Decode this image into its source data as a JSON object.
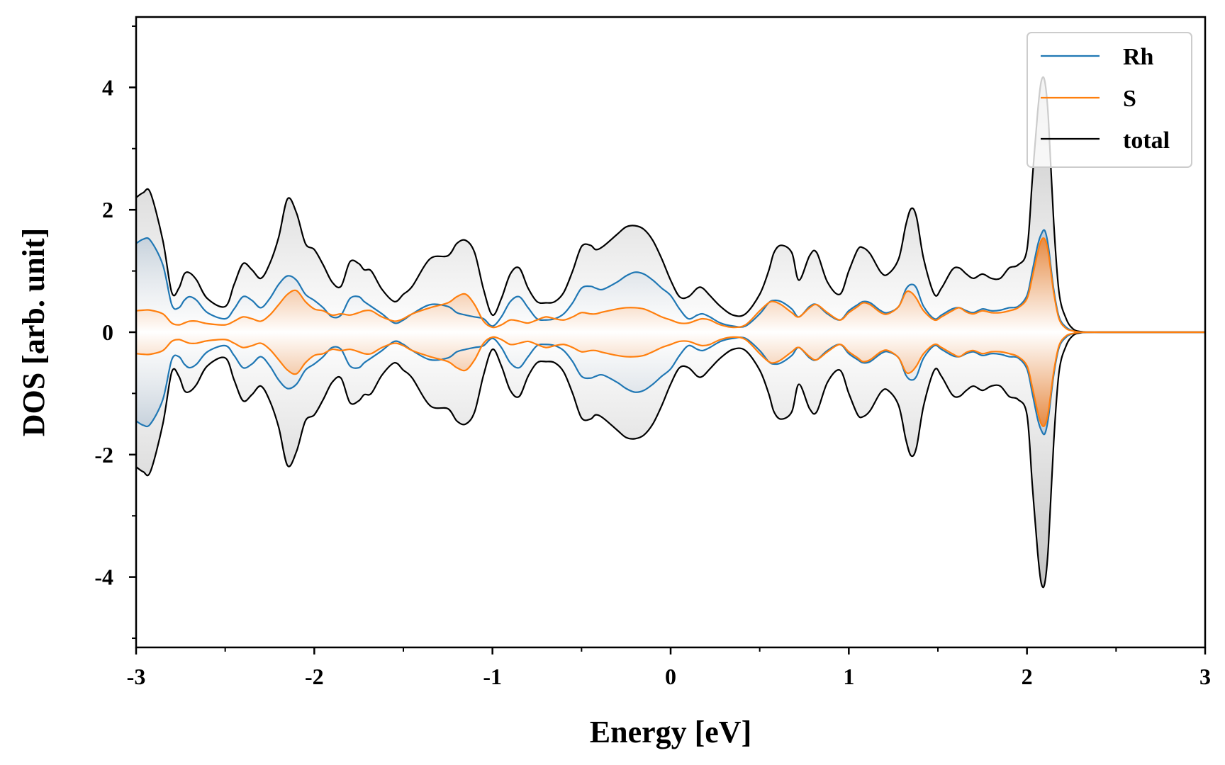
{
  "chart_data": {
    "type": "line",
    "title": "",
    "xlabel": "Energy [eV]",
    "ylabel": "DOS [arb. unit]",
    "xlim": [
      -3,
      3
    ],
    "ylim": [
      -5.15,
      5.15
    ],
    "xticks": [
      -3,
      -2,
      -1,
      0,
      1,
      2,
      3
    ],
    "xtick_labels": [
      "-3",
      "-2",
      "-1",
      "0",
      "1",
      "2",
      "3"
    ],
    "yticks": [
      -4,
      -2,
      0,
      2,
      4
    ],
    "ytick_labels": [
      "-4",
      "-2",
      "0",
      "2",
      "4"
    ],
    "mirrored_about_zero": true,
    "legend": {
      "position": "top-right",
      "entries": [
        "Rh",
        "S",
        "total"
      ]
    },
    "colors": {
      "Rh": "#1f77b4",
      "S": "#ff7f0e",
      "total": "#000000",
      "total_fill": "#bdbdbd",
      "s_fill": "#e8863a"
    },
    "x": [
      -3.0,
      -2.96,
      -2.92,
      -2.85,
      -2.8,
      -2.76,
      -2.73,
      -2.7,
      -2.66,
      -2.6,
      -2.5,
      -2.45,
      -2.4,
      -2.35,
      -2.3,
      -2.25,
      -2.2,
      -2.15,
      -2.1,
      -2.05,
      -2.0,
      -1.95,
      -1.9,
      -1.85,
      -1.8,
      -1.75,
      -1.72,
      -1.68,
      -1.62,
      -1.55,
      -1.5,
      -1.45,
      -1.35,
      -1.25,
      -1.2,
      -1.15,
      -1.1,
      -1.05,
      -1.0,
      -0.95,
      -0.9,
      -0.85,
      -0.8,
      -0.75,
      -0.7,
      -0.65,
      -0.6,
      -0.55,
      -0.5,
      -0.45,
      -0.42,
      -0.38,
      -0.3,
      -0.25,
      -0.2,
      -0.15,
      -0.1,
      -0.05,
      0.0,
      0.05,
      0.1,
      0.15,
      0.18,
      0.22,
      0.28,
      0.35,
      0.42,
      0.5,
      0.55,
      0.58,
      0.62,
      0.68,
      0.72,
      0.78,
      0.82,
      0.88,
      0.95,
      1.0,
      1.05,
      1.08,
      1.12,
      1.18,
      1.22,
      1.28,
      1.32,
      1.35,
      1.38,
      1.42,
      1.48,
      1.52,
      1.58,
      1.62,
      1.66,
      1.7,
      1.75,
      1.8,
      1.85,
      1.9,
      1.95,
      2.0,
      2.03,
      2.06,
      2.08,
      2.1,
      2.12,
      2.15,
      2.18,
      2.22,
      2.26,
      2.3,
      2.35,
      2.45,
      2.6,
      2.8,
      3.0
    ],
    "series": [
      {
        "name": "total",
        "values": [
          2.2,
          2.28,
          2.28,
          1.5,
          0.65,
          0.72,
          0.95,
          0.97,
          0.85,
          0.55,
          0.42,
          0.78,
          1.12,
          1.02,
          0.88,
          1.12,
          1.55,
          2.18,
          1.95,
          1.45,
          1.35,
          1.1,
          0.82,
          0.75,
          1.15,
          1.12,
          1.02,
          1.0,
          0.7,
          0.5,
          0.62,
          0.75,
          1.2,
          1.25,
          1.45,
          1.5,
          1.3,
          0.7,
          0.28,
          0.55,
          0.95,
          1.05,
          0.72,
          0.5,
          0.48,
          0.5,
          0.65,
          1.0,
          1.4,
          1.42,
          1.35,
          1.4,
          1.6,
          1.72,
          1.74,
          1.68,
          1.5,
          1.2,
          0.85,
          0.58,
          0.58,
          0.72,
          0.72,
          0.6,
          0.42,
          0.28,
          0.3,
          0.62,
          1.0,
          1.3,
          1.42,
          1.3,
          0.85,
          1.25,
          1.3,
          0.82,
          0.62,
          1.0,
          1.35,
          1.38,
          1.28,
          0.98,
          0.95,
          1.2,
          1.75,
          2.02,
          1.88,
          1.2,
          0.62,
          0.72,
          1.02,
          1.05,
          0.95,
          0.88,
          0.95,
          0.88,
          0.88,
          1.05,
          1.1,
          1.35,
          2.5,
          3.6,
          4.1,
          4.1,
          3.5,
          1.8,
          0.65,
          0.22,
          0.05,
          0.01,
          0.0,
          0.0,
          0.0,
          0.0,
          0.0
        ]
      },
      {
        "name": "Rh",
        "values": [
          1.45,
          1.52,
          1.5,
          1.1,
          0.45,
          0.4,
          0.52,
          0.58,
          0.52,
          0.32,
          0.22,
          0.38,
          0.58,
          0.52,
          0.4,
          0.55,
          0.78,
          0.92,
          0.85,
          0.62,
          0.52,
          0.4,
          0.25,
          0.28,
          0.55,
          0.58,
          0.5,
          0.42,
          0.3,
          0.15,
          0.2,
          0.3,
          0.45,
          0.42,
          0.32,
          0.28,
          0.25,
          0.22,
          0.1,
          0.25,
          0.5,
          0.58,
          0.4,
          0.22,
          0.2,
          0.22,
          0.3,
          0.48,
          0.72,
          0.75,
          0.72,
          0.7,
          0.82,
          0.92,
          0.98,
          0.95,
          0.85,
          0.72,
          0.6,
          0.38,
          0.22,
          0.28,
          0.3,
          0.25,
          0.15,
          0.1,
          0.1,
          0.3,
          0.48,
          0.52,
          0.5,
          0.38,
          0.25,
          0.42,
          0.45,
          0.3,
          0.2,
          0.35,
          0.45,
          0.5,
          0.48,
          0.35,
          0.32,
          0.42,
          0.7,
          0.78,
          0.72,
          0.42,
          0.22,
          0.28,
          0.38,
          0.4,
          0.35,
          0.32,
          0.38,
          0.35,
          0.36,
          0.4,
          0.42,
          0.6,
          1.0,
          1.42,
          1.6,
          1.66,
          1.4,
          0.7,
          0.25,
          0.08,
          0.02,
          0.0,
          0.0,
          0.0,
          0.0,
          0.0,
          0.0
        ]
      },
      {
        "name": "S",
        "values": [
          0.35,
          0.36,
          0.36,
          0.3,
          0.15,
          0.12,
          0.15,
          0.18,
          0.18,
          0.14,
          0.12,
          0.18,
          0.25,
          0.22,
          0.18,
          0.28,
          0.45,
          0.62,
          0.68,
          0.5,
          0.38,
          0.35,
          0.28,
          0.3,
          0.28,
          0.32,
          0.35,
          0.35,
          0.25,
          0.18,
          0.22,
          0.3,
          0.4,
          0.48,
          0.58,
          0.62,
          0.45,
          0.18,
          0.08,
          0.12,
          0.2,
          0.18,
          0.15,
          0.2,
          0.25,
          0.22,
          0.2,
          0.25,
          0.32,
          0.3,
          0.3,
          0.33,
          0.38,
          0.4,
          0.4,
          0.38,
          0.32,
          0.25,
          0.2,
          0.15,
          0.15,
          0.2,
          0.22,
          0.2,
          0.12,
          0.08,
          0.12,
          0.35,
          0.48,
          0.5,
          0.45,
          0.32,
          0.25,
          0.4,
          0.45,
          0.32,
          0.2,
          0.32,
          0.42,
          0.48,
          0.45,
          0.32,
          0.3,
          0.42,
          0.65,
          0.65,
          0.55,
          0.35,
          0.2,
          0.25,
          0.35,
          0.4,
          0.33,
          0.3,
          0.35,
          0.32,
          0.32,
          0.35,
          0.4,
          0.55,
          0.9,
          1.3,
          1.5,
          1.52,
          1.3,
          0.65,
          0.22,
          0.06,
          0.02,
          0.0,
          0.0,
          0.0,
          0.0,
          0.0,
          0.0
        ]
      }
    ]
  }
}
